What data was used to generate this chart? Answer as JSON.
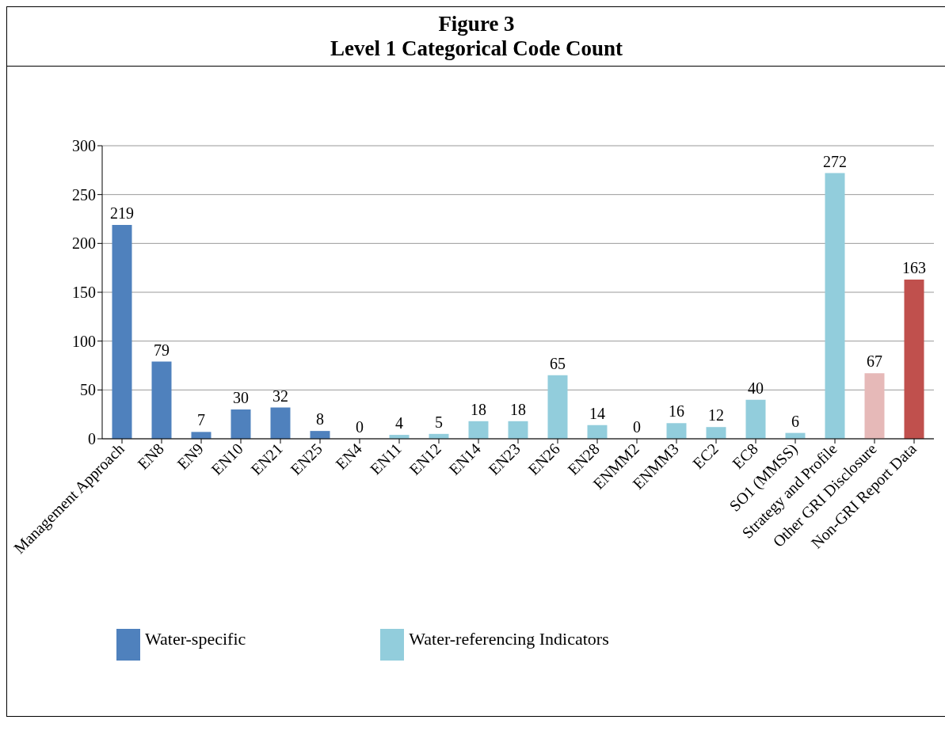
{
  "chart_data": {
    "type": "bar",
    "title": "Figure 3",
    "subtitle": "Level 1 Categorical Code Count",
    "categories": [
      "Management Approach",
      "EN8",
      "EN9",
      "EN10",
      "EN21",
      "EN25",
      "EN4",
      "EN11",
      "EN12",
      "EN14",
      "EN23",
      "EN26",
      "EN28",
      "ENMM2",
      "ENMM3",
      "EC2",
      "EC8",
      "SO1 (MMSS)",
      "Strategy and Profile",
      "Other GRI Disclosure",
      "Non-GRI Report Data"
    ],
    "series": [
      {
        "name": "Water-specific",
        "color": "#4f81bd",
        "values": [
          219,
          79,
          7,
          30,
          32,
          8,
          null,
          null,
          null,
          null,
          null,
          null,
          null,
          null,
          null,
          null,
          null,
          null,
          null,
          null,
          null
        ]
      },
      {
        "name": "Water-referencing Indicators",
        "color": "#92cddc",
        "values": [
          null,
          null,
          null,
          null,
          null,
          null,
          0,
          4,
          5,
          18,
          18,
          65,
          14,
          0,
          16,
          12,
          40,
          6,
          272,
          null,
          null
        ]
      },
      {
        "color": "#e6b9b8",
        "values": [
          null,
          null,
          null,
          null,
          null,
          null,
          null,
          null,
          null,
          null,
          null,
          null,
          null,
          null,
          null,
          null,
          null,
          null,
          null,
          67,
          null
        ]
      },
      {
        "color": "#c0504d",
        "values": [
          null,
          null,
          null,
          null,
          null,
          null,
          null,
          null,
          null,
          null,
          null,
          null,
          null,
          null,
          null,
          null,
          null,
          null,
          null,
          null,
          163
        ]
      }
    ],
    "stacked": true,
    "ylim": [
      0,
      300
    ],
    "yticks": [
      0,
      50,
      100,
      150,
      200,
      250,
      300
    ],
    "grid": "y",
    "data_labels": true,
    "legend": "bottom"
  }
}
